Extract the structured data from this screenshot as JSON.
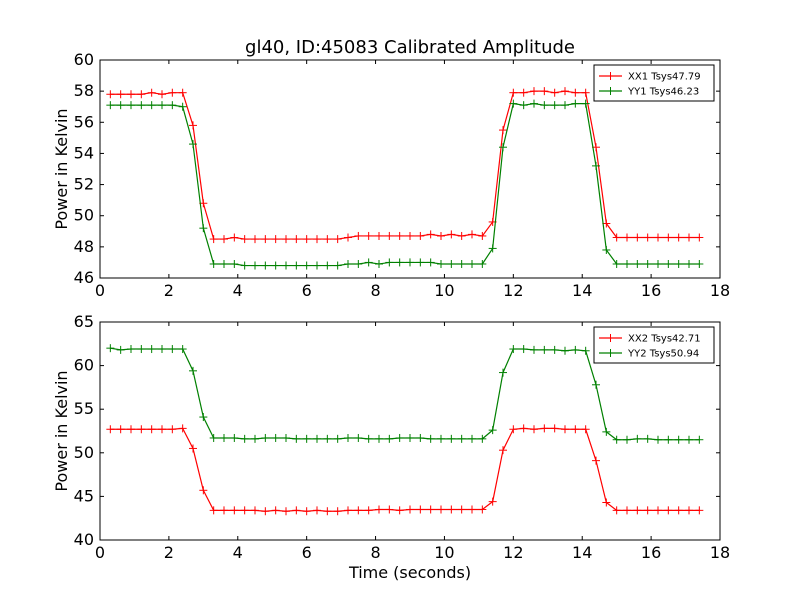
{
  "figure": {
    "title": "gl40, ID:45083 Calibrated Amplitude",
    "background": "#ffffff"
  },
  "chart_data": [
    {
      "type": "line",
      "title": "gl40, ID:45083 Calibrated Amplitude",
      "xlabel": "",
      "ylabel": "Power in Kelvin",
      "xlim": [
        0,
        18
      ],
      "ylim": [
        46,
        60
      ],
      "xticks": [
        0,
        2,
        4,
        6,
        8,
        10,
        12,
        14,
        16,
        18
      ],
      "yticks": [
        46,
        48,
        50,
        52,
        54,
        56,
        58,
        60
      ],
      "grid": false,
      "legend": "top-right",
      "x": [
        0.3,
        0.6,
        0.9,
        1.2,
        1.5,
        1.8,
        2.1,
        2.4,
        2.7,
        3.0,
        3.3,
        3.6,
        3.9,
        4.2,
        4.5,
        4.8,
        5.1,
        5.4,
        5.7,
        6.0,
        6.3,
        6.6,
        6.9,
        7.2,
        7.5,
        7.8,
        8.1,
        8.4,
        8.7,
        9.0,
        9.3,
        9.6,
        9.9,
        10.2,
        10.5,
        10.8,
        11.1,
        11.4,
        11.7,
        12.0,
        12.3,
        12.6,
        12.9,
        13.2,
        13.5,
        13.8,
        14.1,
        14.4,
        14.7,
        15.0,
        15.3,
        15.6,
        15.9,
        16.2,
        16.5,
        16.8,
        17.1,
        17.4
      ],
      "series": [
        {
          "name": "XX1 Tsys47.79",
          "color": "#ff0000",
          "values": [
            57.8,
            57.8,
            57.8,
            57.8,
            57.9,
            57.8,
            57.9,
            57.9,
            55.8,
            50.8,
            48.5,
            48.5,
            48.6,
            48.5,
            48.5,
            48.5,
            48.5,
            48.5,
            48.5,
            48.5,
            48.5,
            48.5,
            48.5,
            48.6,
            48.7,
            48.7,
            48.7,
            48.7,
            48.7,
            48.7,
            48.7,
            48.8,
            48.7,
            48.8,
            48.7,
            48.8,
            48.7,
            49.6,
            55.5,
            57.9,
            57.9,
            58.0,
            58.0,
            57.9,
            58.0,
            57.9,
            57.9,
            54.4,
            49.5,
            48.6,
            48.6,
            48.6,
            48.6,
            48.6,
            48.6,
            48.6,
            48.6,
            48.6
          ]
        },
        {
          "name": "YY1 Tsys46.23",
          "color": "#008000",
          "values": [
            57.1,
            57.1,
            57.1,
            57.1,
            57.1,
            57.1,
            57.1,
            57.0,
            54.6,
            49.2,
            46.9,
            46.9,
            46.9,
            46.8,
            46.8,
            46.8,
            46.8,
            46.8,
            46.8,
            46.8,
            46.8,
            46.8,
            46.8,
            46.9,
            46.9,
            47.0,
            46.9,
            47.0,
            47.0,
            47.0,
            47.0,
            47.0,
            46.9,
            46.9,
            46.9,
            46.9,
            46.9,
            47.9,
            54.4,
            57.2,
            57.1,
            57.2,
            57.1,
            57.1,
            57.1,
            57.2,
            57.2,
            53.2,
            47.8,
            46.9,
            46.9,
            46.9,
            46.9,
            46.9,
            46.9,
            46.9,
            46.9,
            46.9
          ]
        }
      ]
    },
    {
      "type": "line",
      "title": "",
      "xlabel": "Time (seconds)",
      "ylabel": "Power in Kelvin",
      "xlim": [
        0,
        18
      ],
      "ylim": [
        40,
        65
      ],
      "xticks": [
        0,
        2,
        4,
        6,
        8,
        10,
        12,
        14,
        16,
        18
      ],
      "yticks": [
        40,
        45,
        50,
        55,
        60,
        65
      ],
      "grid": false,
      "legend": "top-right",
      "x": [
        0.3,
        0.6,
        0.9,
        1.2,
        1.5,
        1.8,
        2.1,
        2.4,
        2.7,
        3.0,
        3.3,
        3.6,
        3.9,
        4.2,
        4.5,
        4.8,
        5.1,
        5.4,
        5.7,
        6.0,
        6.3,
        6.6,
        6.9,
        7.2,
        7.5,
        7.8,
        8.1,
        8.4,
        8.7,
        9.0,
        9.3,
        9.6,
        9.9,
        10.2,
        10.5,
        10.8,
        11.1,
        11.4,
        11.7,
        12.0,
        12.3,
        12.6,
        12.9,
        13.2,
        13.5,
        13.8,
        14.1,
        14.4,
        14.7,
        15.0,
        15.3,
        15.6,
        15.9,
        16.2,
        16.5,
        16.8,
        17.1,
        17.4
      ],
      "series": [
        {
          "name": "XX2 Tsys42.71",
          "color": "#ff0000",
          "values": [
            52.7,
            52.7,
            52.7,
            52.7,
            52.7,
            52.7,
            52.7,
            52.8,
            50.5,
            45.7,
            43.4,
            43.4,
            43.4,
            43.4,
            43.4,
            43.3,
            43.4,
            43.3,
            43.4,
            43.3,
            43.4,
            43.3,
            43.3,
            43.4,
            43.4,
            43.4,
            43.5,
            43.5,
            43.4,
            43.5,
            43.5,
            43.5,
            43.5,
            43.5,
            43.5,
            43.5,
            43.5,
            44.4,
            50.3,
            52.7,
            52.8,
            52.7,
            52.8,
            52.8,
            52.7,
            52.7,
            52.7,
            49.1,
            44.3,
            43.4,
            43.4,
            43.4,
            43.4,
            43.4,
            43.4,
            43.4,
            43.4,
            43.4
          ]
        },
        {
          "name": "YY2 Tsys50.94",
          "color": "#008000",
          "values": [
            62.0,
            61.8,
            61.9,
            61.9,
            61.9,
            61.9,
            61.9,
            61.9,
            59.4,
            54.1,
            51.7,
            51.7,
            51.7,
            51.6,
            51.6,
            51.7,
            51.7,
            51.7,
            51.6,
            51.6,
            51.6,
            51.6,
            51.6,
            51.7,
            51.7,
            51.6,
            51.6,
            51.6,
            51.7,
            51.7,
            51.7,
            51.6,
            51.6,
            51.6,
            51.6,
            51.6,
            51.6,
            52.6,
            59.2,
            61.9,
            61.9,
            61.8,
            61.8,
            61.8,
            61.7,
            61.8,
            61.7,
            57.8,
            52.4,
            51.5,
            51.5,
            51.6,
            51.6,
            51.5,
            51.5,
            51.5,
            51.5,
            51.5
          ]
        }
      ]
    }
  ]
}
